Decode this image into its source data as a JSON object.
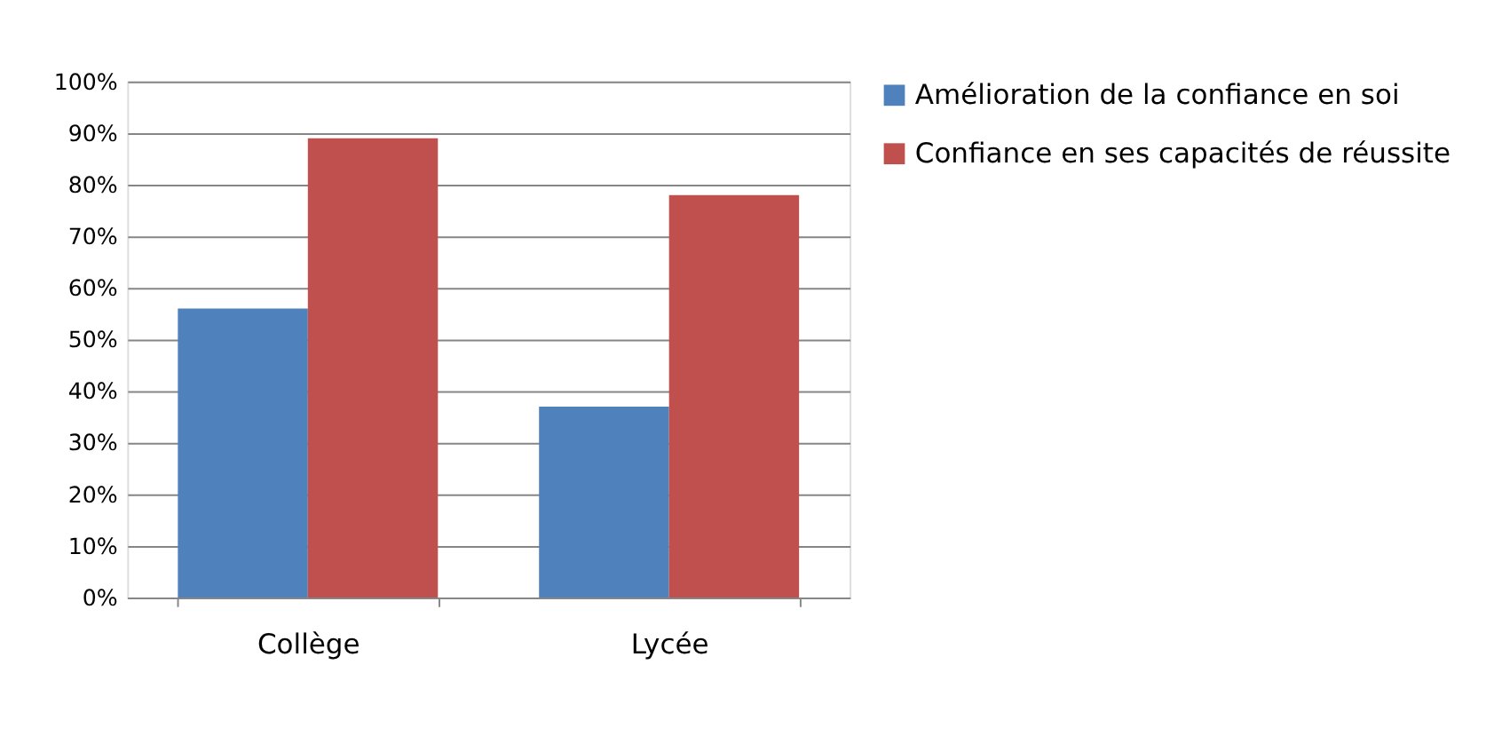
{
  "chart_data": {
    "type": "bar",
    "categories": [
      "Collège",
      "Lycée"
    ],
    "series": [
      {
        "name": "Amélioration de la confiance en soi",
        "color": "#4f81bd",
        "values": [
          56,
          37
        ]
      },
      {
        "name": "Confiance en ses capacités de réussite",
        "color": "#c0504d",
        "values": [
          89,
          78
        ]
      }
    ],
    "ylim": [
      0,
      100
    ],
    "yticks": [
      {
        "value": 0,
        "label": "0%"
      },
      {
        "value": 10,
        "label": "10%"
      },
      {
        "value": 20,
        "label": "20%"
      },
      {
        "value": 30,
        "label": "30%"
      },
      {
        "value": 40,
        "label": "40%"
      },
      {
        "value": 50,
        "label": "50%"
      },
      {
        "value": 60,
        "label": "60%"
      },
      {
        "value": 70,
        "label": "70%"
      },
      {
        "value": 80,
        "label": "80%"
      },
      {
        "value": 90,
        "label": "90%"
      },
      {
        "value": 100,
        "label": "100%"
      }
    ],
    "grid": "y",
    "legend": "right"
  }
}
